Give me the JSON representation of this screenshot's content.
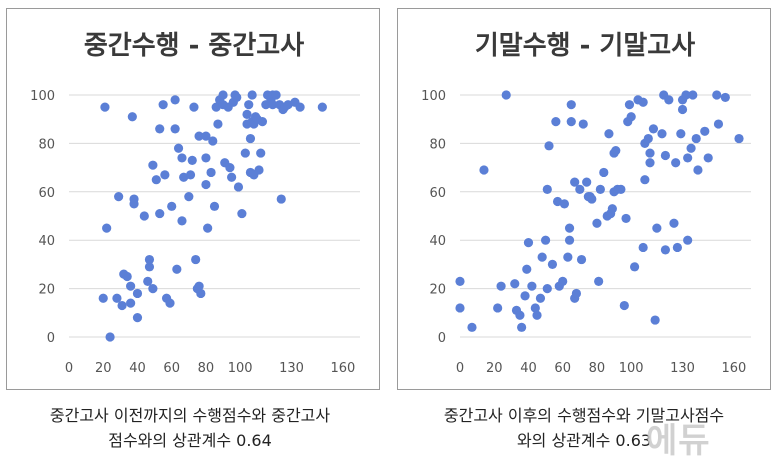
{
  "watermark": "에듀",
  "captions": [
    {
      "line1": "중간고사 이전까지의 수행점수와 중간고사",
      "line2": "점수와의 상관계수 0.64"
    },
    {
      "line1": "중간고사 이후의 수행점수와 기말고사점수",
      "line2": "와의 상관계수 0.63"
    }
  ],
  "chart_data": [
    {
      "type": "scatter",
      "title": "중간수행 - 중간고사",
      "xlabel": "",
      "ylabel": "",
      "xlim": [
        0,
        170
      ],
      "ylim": [
        0,
        100
      ],
      "xticks": [
        "0",
        "20",
        "40",
        "60",
        "80",
        "100",
        "130",
        "160"
      ],
      "xtick_values": [
        0,
        20,
        40,
        60,
        80,
        100,
        130,
        160
      ],
      "yticks": [
        "0",
        "20",
        "40",
        "60",
        "80",
        "100"
      ],
      "ytick_values": [
        0,
        20,
        40,
        60,
        80,
        100
      ],
      "grid": true,
      "color": "#5b7fd6",
      "points": [
        [
          20,
          16
        ],
        [
          21,
          95
        ],
        [
          22,
          45
        ],
        [
          24,
          0
        ],
        [
          28,
          16
        ],
        [
          29,
          58
        ],
        [
          31,
          13
        ],
        [
          32,
          26
        ],
        [
          34,
          25
        ],
        [
          36,
          14
        ],
        [
          36,
          21
        ],
        [
          37,
          91
        ],
        [
          38,
          57
        ],
        [
          38,
          55
        ],
        [
          40,
          8
        ],
        [
          40,
          18
        ],
        [
          44,
          50
        ],
        [
          46,
          23
        ],
        [
          47,
          29
        ],
        [
          47,
          32
        ],
        [
          49,
          20
        ],
        [
          49,
          71
        ],
        [
          51,
          65
        ],
        [
          53,
          86
        ],
        [
          53,
          51
        ],
        [
          55,
          96
        ],
        [
          56,
          67
        ],
        [
          57,
          16
        ],
        [
          59,
          14
        ],
        [
          60,
          54
        ],
        [
          62,
          98
        ],
        [
          62,
          86
        ],
        [
          63,
          28
        ],
        [
          64,
          78
        ],
        [
          66,
          74
        ],
        [
          66,
          48
        ],
        [
          67,
          66
        ],
        [
          70,
          58
        ],
        [
          71,
          67
        ],
        [
          72,
          73
        ],
        [
          73,
          95
        ],
        [
          74,
          32
        ],
        [
          75,
          20
        ],
        [
          76,
          21
        ],
        [
          76,
          83
        ],
        [
          77,
          18
        ],
        [
          80,
          74
        ],
        [
          80,
          83
        ],
        [
          80,
          63
        ],
        [
          81,
          45
        ],
        [
          83,
          68
        ],
        [
          84,
          81
        ],
        [
          85,
          54
        ],
        [
          86,
          95
        ],
        [
          87,
          88
        ],
        [
          88,
          98
        ],
        [
          90,
          96
        ],
        [
          90,
          100
        ],
        [
          91,
          72
        ],
        [
          93,
          95
        ],
        [
          94,
          70
        ],
        [
          95,
          66
        ],
        [
          96,
          97
        ],
        [
          97,
          100
        ],
        [
          98,
          99
        ],
        [
          99,
          62
        ],
        [
          101,
          51
        ],
        [
          103,
          76
        ],
        [
          104,
          92
        ],
        [
          104,
          88
        ],
        [
          105,
          96
        ],
        [
          106,
          82
        ],
        [
          106,
          68
        ],
        [
          107,
          89
        ],
        [
          107,
          100
        ],
        [
          108,
          67
        ],
        [
          108,
          88
        ],
        [
          109,
          91
        ],
        [
          110,
          90
        ],
        [
          111,
          69
        ],
        [
          112,
          76
        ],
        [
          113,
          89
        ],
        [
          115,
          96
        ],
        [
          116,
          100
        ],
        [
          118,
          98
        ],
        [
          119,
          96
        ],
        [
          119,
          100
        ],
        [
          121,
          100
        ],
        [
          123,
          96
        ],
        [
          124,
          57
        ],
        [
          125,
          94
        ],
        [
          126,
          95
        ],
        [
          128,
          96
        ],
        [
          132,
          97
        ],
        [
          135,
          95
        ],
        [
          148,
          95
        ]
      ]
    },
    {
      "type": "scatter",
      "title": "기말수행 - 기말고사",
      "xlabel": "",
      "ylabel": "",
      "xlim": [
        0,
        170
      ],
      "ylim": [
        0,
        100
      ],
      "xticks": [
        "0",
        "20",
        "40",
        "60",
        "80",
        "100",
        "130",
        "160"
      ],
      "xtick_values": [
        0,
        20,
        40,
        60,
        80,
        100,
        130,
        160
      ],
      "yticks": [
        "0",
        "20",
        "40",
        "60",
        "80",
        "100"
      ],
      "ytick_values": [
        0,
        20,
        40,
        60,
        80,
        100
      ],
      "grid": true,
      "color": "#5b7fd6",
      "points": [
        [
          0,
          23
        ],
        [
          0,
          12
        ],
        [
          7,
          4
        ],
        [
          14,
          69
        ],
        [
          22,
          12
        ],
        [
          24,
          21
        ],
        [
          27,
          100
        ],
        [
          32,
          22
        ],
        [
          33,
          11
        ],
        [
          35,
          9
        ],
        [
          36,
          4
        ],
        [
          38,
          17
        ],
        [
          39,
          28
        ],
        [
          40,
          39
        ],
        [
          42,
          21
        ],
        [
          44,
          12
        ],
        [
          45,
          9
        ],
        [
          47,
          16
        ],
        [
          48,
          33
        ],
        [
          50,
          40
        ],
        [
          51,
          20
        ],
        [
          51,
          61
        ],
        [
          52,
          79
        ],
        [
          54,
          30
        ],
        [
          56,
          89
        ],
        [
          57,
          56
        ],
        [
          58,
          21
        ],
        [
          60,
          23
        ],
        [
          61,
          55
        ],
        [
          63,
          33
        ],
        [
          64,
          40
        ],
        [
          64,
          45
        ],
        [
          65,
          89
        ],
        [
          65,
          96
        ],
        [
          67,
          16
        ],
        [
          67,
          64
        ],
        [
          68,
          18
        ],
        [
          70,
          61
        ],
        [
          71,
          32
        ],
        [
          72,
          88
        ],
        [
          74,
          64
        ],
        [
          75,
          58
        ],
        [
          76,
          58
        ],
        [
          77,
          57
        ],
        [
          80,
          47
        ],
        [
          81,
          23
        ],
        [
          82,
          61
        ],
        [
          84,
          68
        ],
        [
          86,
          50
        ],
        [
          87,
          84
        ],
        [
          88,
          51
        ],
        [
          89,
          53
        ],
        [
          90,
          60
        ],
        [
          90,
          76
        ],
        [
          91,
          77
        ],
        [
          92,
          61
        ],
        [
          94,
          61
        ],
        [
          96,
          13
        ],
        [
          97,
          49
        ],
        [
          98,
          89
        ],
        [
          99,
          96
        ],
        [
          100,
          91
        ],
        [
          102,
          29
        ],
        [
          104,
          98
        ],
        [
          107,
          97
        ],
        [
          107,
          37
        ],
        [
          108,
          65
        ],
        [
          108,
          80
        ],
        [
          110,
          82
        ],
        [
          111,
          76
        ],
        [
          111,
          72
        ],
        [
          113,
          86
        ],
        [
          114,
          7
        ],
        [
          115,
          45
        ],
        [
          118,
          84
        ],
        [
          119,
          100
        ],
        [
          120,
          75
        ],
        [
          122,
          98
        ],
        [
          125,
          47
        ],
        [
          126,
          72
        ],
        [
          129,
          84
        ],
        [
          130,
          98
        ],
        [
          130,
          94
        ],
        [
          132,
          100
        ],
        [
          133,
          40
        ],
        [
          133,
          74
        ],
        [
          135,
          78
        ],
        [
          136,
          100
        ],
        [
          138,
          82
        ],
        [
          139,
          69
        ],
        [
          143,
          85
        ],
        [
          145,
          74
        ],
        [
          150,
          100
        ],
        [
          151,
          88
        ],
        [
          155,
          99
        ],
        [
          163,
          82
        ],
        [
          127,
          37
        ],
        [
          120,
          36
        ]
      ]
    }
  ]
}
